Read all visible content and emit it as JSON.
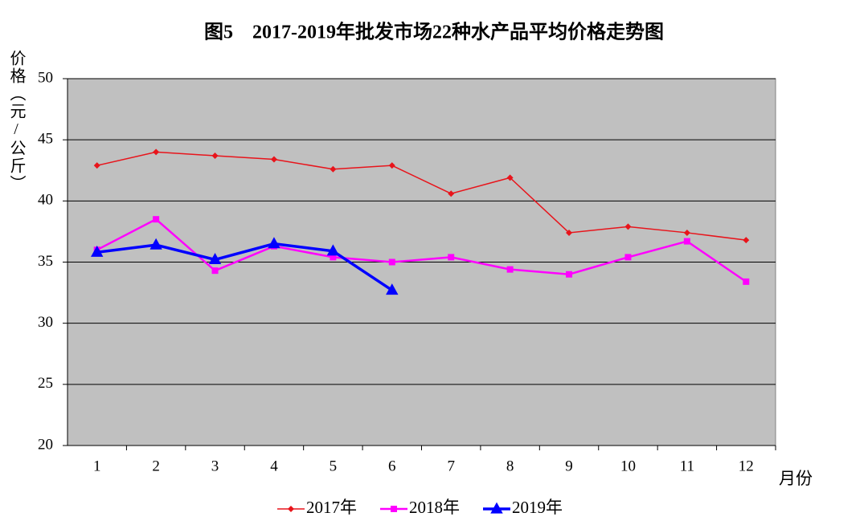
{
  "chart_data": {
    "type": "line",
    "title": "图5　2017-2019年批发市场22种水产品平均价格走势图",
    "y_label": "价格（元/公斤）",
    "x_label": "月份",
    "categories": [
      "1",
      "2",
      "3",
      "4",
      "5",
      "6",
      "7",
      "8",
      "9",
      "10",
      "11",
      "12"
    ],
    "series": [
      {
        "name": "2017年",
        "color": "#e8141b",
        "marker": "diamond",
        "values": [
          42.9,
          44.0,
          43.7,
          43.4,
          42.6,
          42.9,
          40.6,
          41.9,
          37.4,
          37.9,
          37.4,
          36.8
        ]
      },
      {
        "name": "2018年",
        "color": "#ff00ff",
        "marker": "square",
        "values": [
          36.0,
          38.5,
          34.3,
          36.3,
          35.4,
          35.0,
          35.4,
          34.4,
          34.0,
          35.4,
          36.7,
          33.4
        ]
      },
      {
        "name": "2019年",
        "color": "#0000ff",
        "marker": "triangle",
        "values": [
          35.8,
          36.4,
          35.2,
          36.5,
          35.9,
          32.7,
          null,
          null,
          null,
          null,
          null,
          null
        ]
      }
    ],
    "ylim": [
      20,
      50
    ],
    "yticks": [
      20,
      25,
      30,
      35,
      40,
      45,
      50
    ],
    "grid": true,
    "legend": "bottom"
  }
}
